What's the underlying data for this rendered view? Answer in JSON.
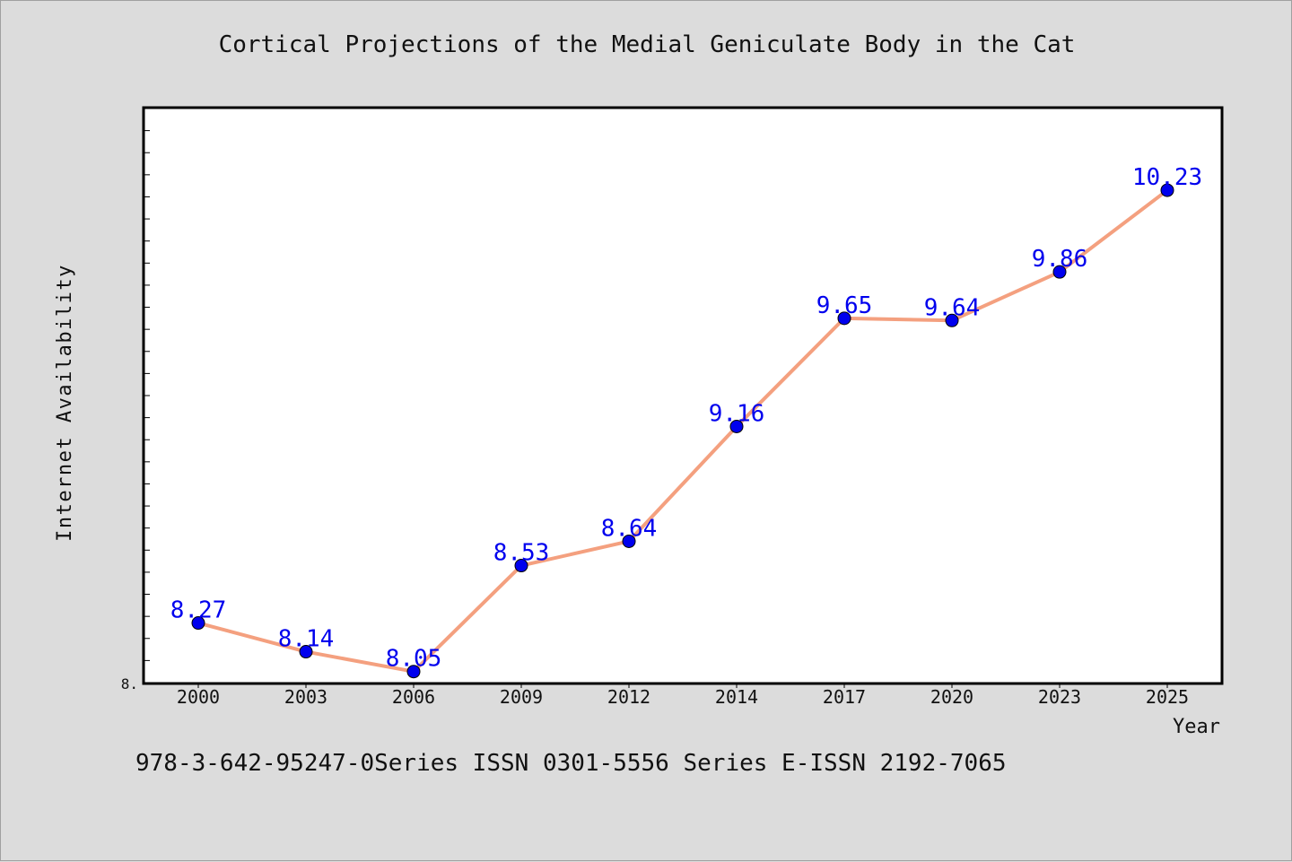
{
  "footer": "978-3-642-95247-0Series ISSN 0301-5556 Series E-ISSN 2192-7065",
  "chart_data": {
    "type": "line",
    "title": "Cortical Projections of the Medial Geniculate Body in the Cat",
    "xlabel": "Year",
    "ylabel": "Internet Availability",
    "categories": [
      "2000",
      "2003",
      "2006",
      "2009",
      "2012",
      "2014",
      "2017",
      "2020",
      "2023",
      "2025"
    ],
    "values": [
      8.27,
      8.14,
      8.05,
      8.53,
      8.64,
      9.16,
      9.65,
      9.64,
      9.86,
      10.23
    ],
    "data_labels": [
      "8.27",
      "8.14",
      "8.05",
      "8.53",
      "8.64",
      "9.16",
      "9.65",
      "9.64",
      "9.86",
      "10.23"
    ],
    "y_tick_label": "8.",
    "ylim": [
      8.0,
      10.6
    ],
    "grid": false,
    "legend": "none",
    "line_color": "#f4a07f",
    "marker_color": "#0000ee",
    "label_color": "#0000ee"
  }
}
